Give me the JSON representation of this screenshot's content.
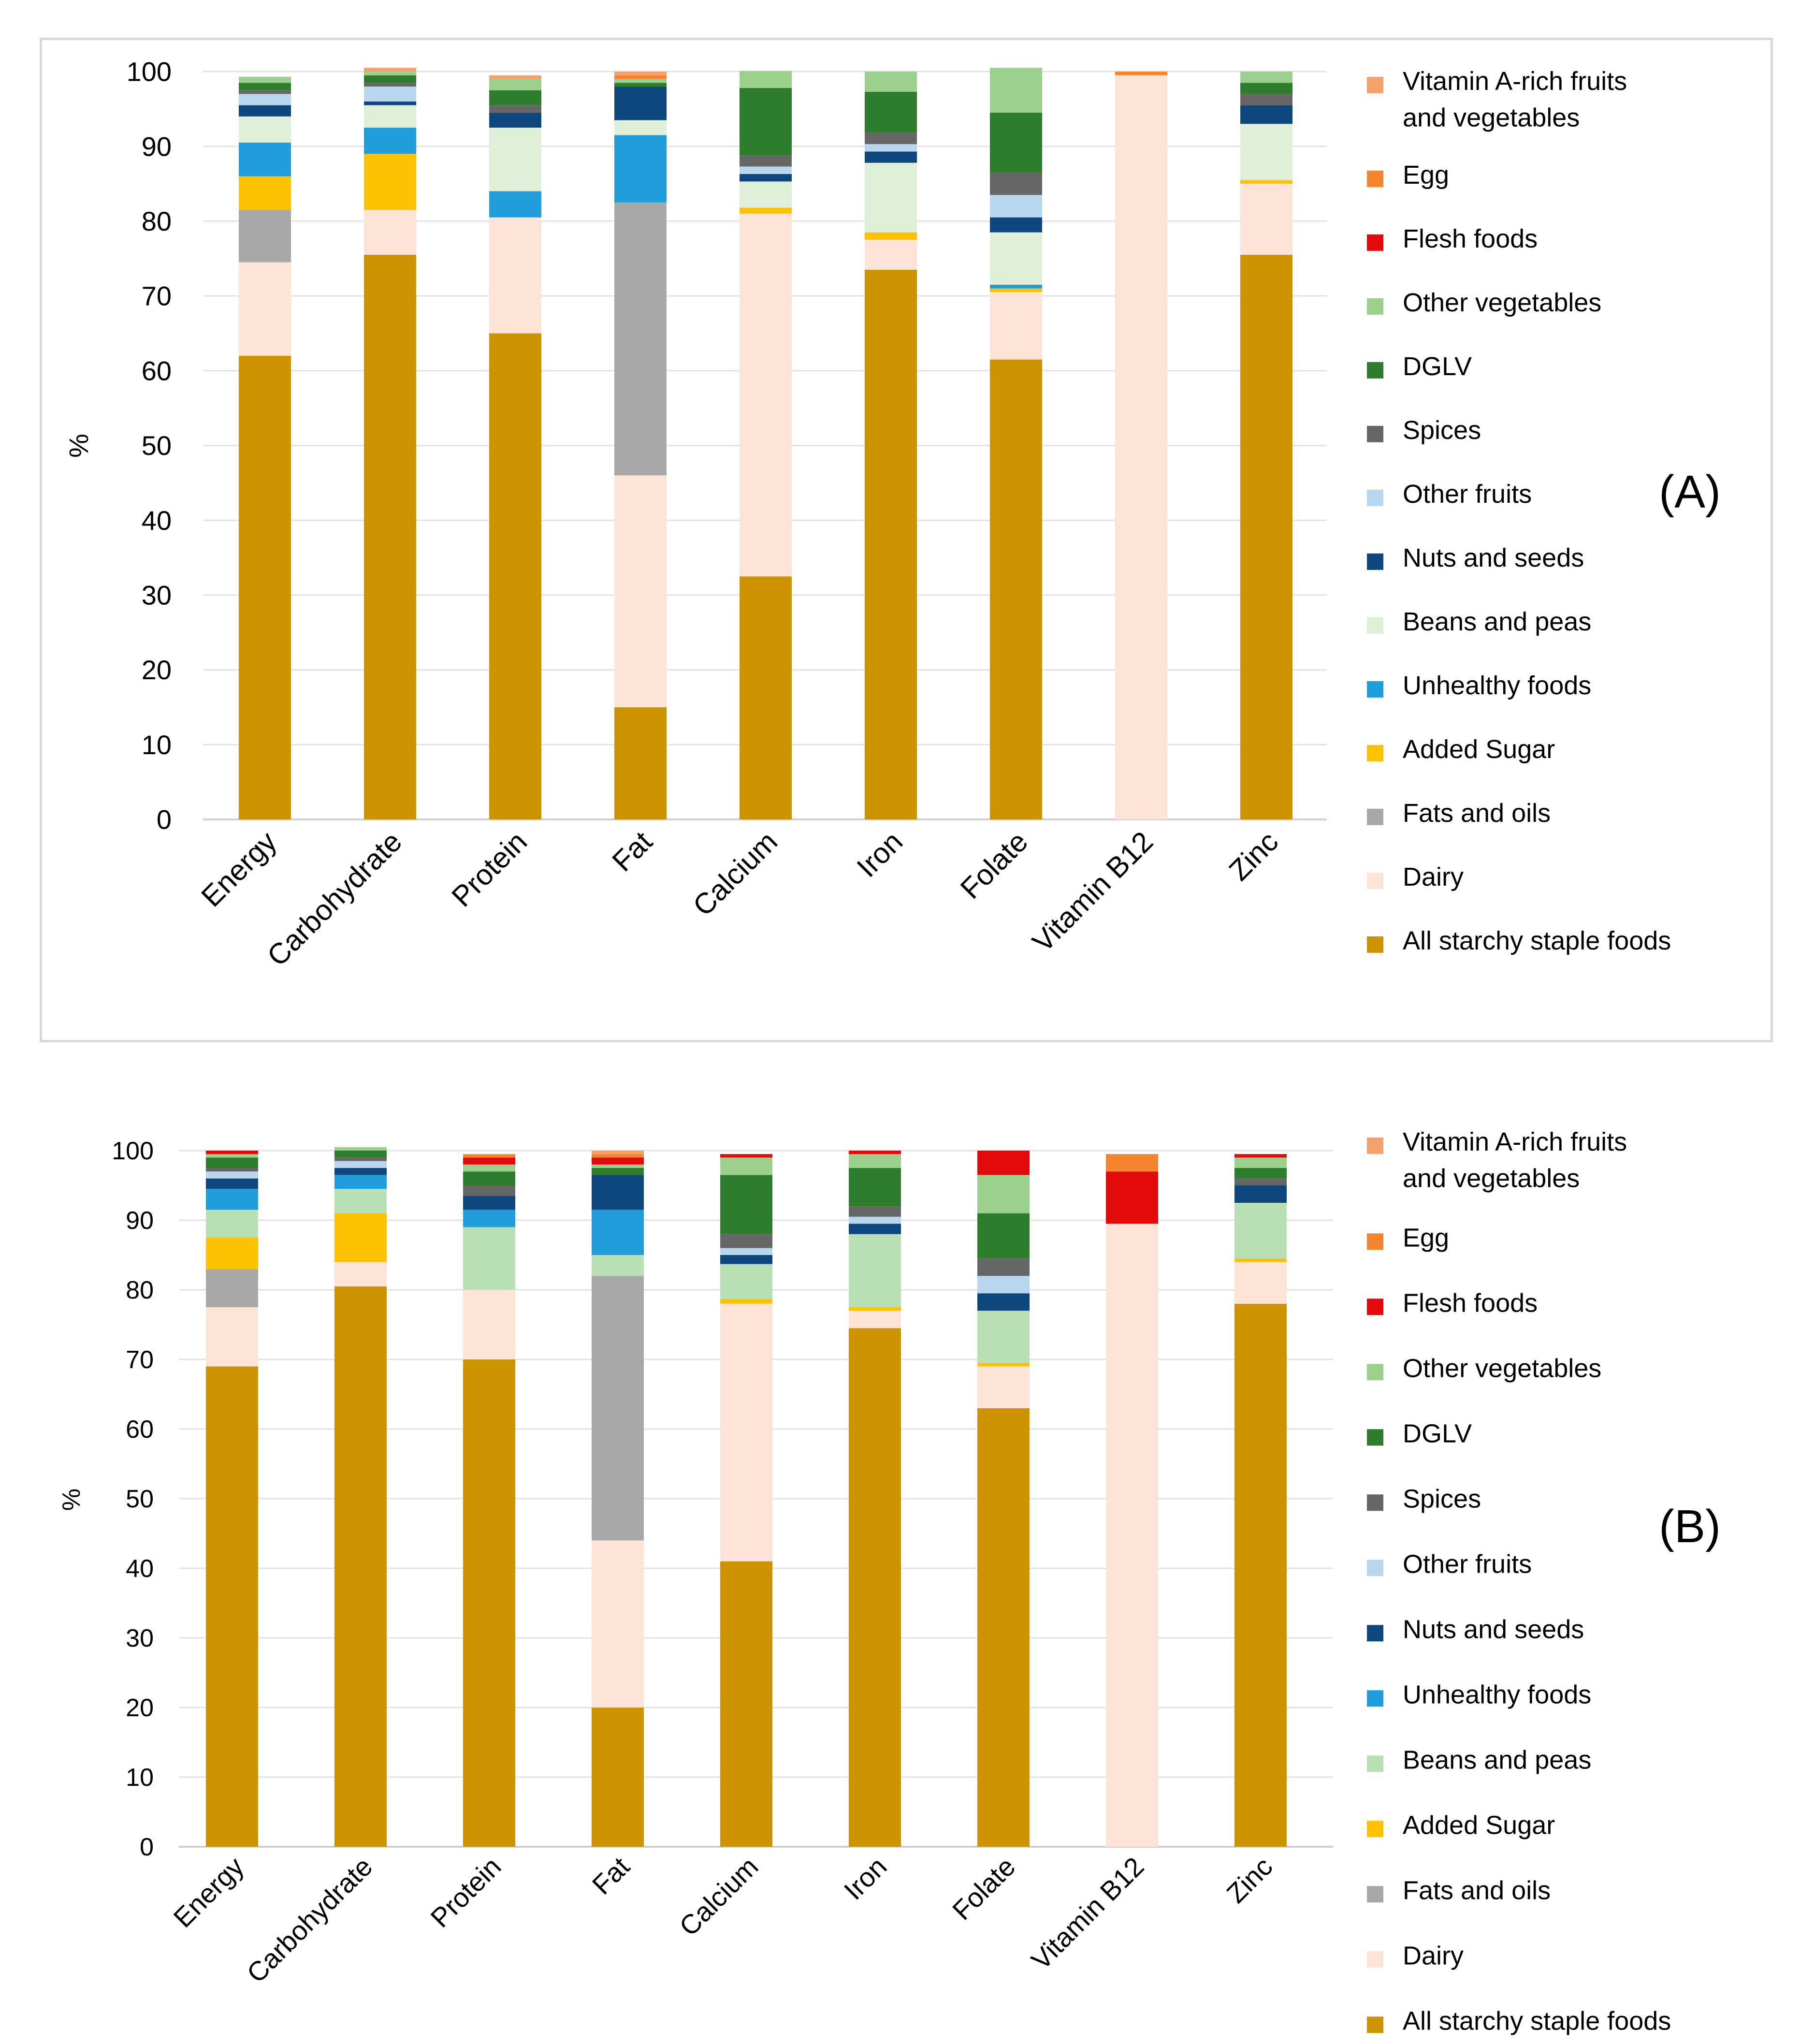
{
  "colors": {
    "Vitamin A-rich fruits and vegetables": "#F4A16B",
    "Egg": "#F5842F",
    "Flesh foods": "#E20A0A",
    "Other vegetables": "#9BD18C",
    "DGLV": "#2E7D2E",
    "Spices": "#666666",
    "Other fruits": "#B8D7EE",
    "Nuts and seeds": "#0E477E",
    "Beans and peas (A)": "#E0EFD8",
    "Beans and peas (B)": "#B9E0B5",
    "Unhealthy foods": "#219DDB",
    "Added Sugar": "#FDC202",
    "Fats and oils": "#A8A8A8",
    "Dairy": "#FDE4D7",
    "All starchy staple foods": "#CE9300"
  },
  "chart_data": [
    {
      "type": "bar",
      "stacked": true,
      "panel_label": "(A)",
      "ylabel": "%",
      "ylim": [
        0,
        100
      ],
      "yticks": [
        "0",
        "10",
        "20",
        "30",
        "40",
        "50",
        "60",
        "70",
        "80",
        "90",
        "100"
      ],
      "categories": [
        "Energy",
        "Carbohydrate",
        "Protein",
        "Fat",
        "Calcium",
        "Iron",
        "Folate",
        "Vitamin B12",
        "Zinc"
      ],
      "legend": [
        "Vitamin A-rich fruits and vegetables",
        "Egg",
        "Flesh foods",
        "Other vegetables",
        "DGLV",
        "Spices",
        "Other fruits",
        "Nuts and seeds",
        "Beans and peas",
        "Unhealthy foods",
        "Added Sugar",
        "Fats and oils",
        "Dairy",
        "All starchy staple foods"
      ],
      "series": [
        {
          "name": "All starchy staple foods",
          "values": [
            62,
            75.5,
            65,
            15,
            32.5,
            73.5,
            61.5,
            0,
            75.5
          ]
        },
        {
          "name": "Dairy",
          "values": [
            12.5,
            6,
            15.5,
            31,
            48.5,
            4,
            9,
            99.5,
            9.5
          ]
        },
        {
          "name": "Fats and oils",
          "values": [
            7,
            0,
            0,
            36.5,
            0,
            0,
            0,
            0,
            0
          ]
        },
        {
          "name": "Added Sugar",
          "values": [
            4.5,
            7.5,
            0,
            0,
            0.8,
            1,
            0.5,
            0,
            0.5
          ]
        },
        {
          "name": "Unhealthy foods",
          "values": [
            4.5,
            3.5,
            3.5,
            9,
            0,
            0,
            0.5,
            0,
            0
          ]
        },
        {
          "name": "Beans and peas",
          "values": [
            3.5,
            3,
            8.5,
            2,
            3.5,
            9.3,
            7,
            0,
            7.5
          ]
        },
        {
          "name": "Nuts and seeds",
          "values": [
            1.5,
            0.5,
            2,
            4.5,
            1,
            1.5,
            2,
            0,
            2.5
          ]
        },
        {
          "name": "Other fruits",
          "values": [
            1.5,
            2,
            0,
            0,
            1,
            1,
            3,
            0,
            0
          ]
        },
        {
          "name": "Spices",
          "values": [
            0.5,
            0.5,
            1,
            0,
            1.5,
            1.5,
            3,
            0,
            1.5
          ]
        },
        {
          "name": "DGLV",
          "values": [
            1,
            1,
            2,
            0.5,
            9,
            5.5,
            8,
            0,
            1.5
          ]
        },
        {
          "name": "Other vegetables",
          "values": [
            0.8,
            0.5,
            1.5,
            0.5,
            2.3,
            2.7,
            6,
            0,
            1.5
          ]
        },
        {
          "name": "Flesh foods",
          "values": [
            0,
            0,
            0,
            0,
            0,
            0,
            0,
            0,
            0
          ]
        },
        {
          "name": "Egg",
          "values": [
            0,
            0,
            0,
            0.5,
            0,
            0,
            0,
            0.5,
            0
          ]
        },
        {
          "name": "Vitamin A-rich fruits and vegetables",
          "values": [
            0,
            0.5,
            0.5,
            0.5,
            0,
            0,
            0,
            0,
            0
          ]
        }
      ]
    },
    {
      "type": "bar",
      "stacked": true,
      "panel_label": "(B)",
      "ylabel": "%",
      "ylim": [
        0,
        100
      ],
      "yticks": [
        "0",
        "10",
        "20",
        "30",
        "40",
        "50",
        "60",
        "70",
        "80",
        "90",
        "100"
      ],
      "categories": [
        "Energy",
        "Carbohydrate",
        "Protein",
        "Fat",
        "Calcium",
        "Iron",
        "Folate",
        "Vitamin B12",
        "Zinc"
      ],
      "legend": [
        "Vitamin A-rich fruits and vegetables",
        "Egg",
        "Flesh foods",
        "Other vegetables",
        "DGLV",
        "Spices",
        "Other fruits",
        "Nuts and seeds",
        "Unhealthy foods",
        "Beans and peas",
        "Added Sugar",
        "Fats and oils",
        "Dairy",
        "All starchy staple foods"
      ],
      "series": [
        {
          "name": "All starchy staple foods",
          "values": [
            69,
            80.5,
            70,
            20,
            41,
            74.5,
            63,
            0,
            78
          ]
        },
        {
          "name": "Dairy",
          "values": [
            8.5,
            3.5,
            10,
            24,
            37,
            2.5,
            6,
            89.5,
            6
          ]
        },
        {
          "name": "Fats and oils",
          "values": [
            5.5,
            0,
            0,
            38,
            0,
            0,
            0,
            0,
            0
          ]
        },
        {
          "name": "Added Sugar",
          "values": [
            4.5,
            7,
            0,
            0,
            0.7,
            0.5,
            0.5,
            0,
            0.5
          ]
        },
        {
          "name": "Beans and peas",
          "values": [
            4,
            3.5,
            9,
            3,
            5,
            10.5,
            7.5,
            0,
            8
          ]
        },
        {
          "name": "Unhealthy foods",
          "values": [
            3,
            2,
            2.5,
            6.5,
            0,
            0,
            0,
            0,
            0
          ]
        },
        {
          "name": "Nuts and seeds",
          "values": [
            1.5,
            1,
            2,
            5,
            1.3,
            1.5,
            2.5,
            0,
            2.5
          ]
        },
        {
          "name": "Other fruits",
          "values": [
            1,
            1,
            0,
            0,
            1,
            1,
            2.5,
            0,
            0
          ]
        },
        {
          "name": "Spices",
          "values": [
            0.5,
            0.5,
            1.5,
            0,
            2,
            1.5,
            2.5,
            0,
            1
          ]
        },
        {
          "name": "DGLV",
          "values": [
            1.5,
            1,
            2,
            1,
            8.5,
            5.5,
            6.5,
            0,
            1.5
          ]
        },
        {
          "name": "Other vegetables",
          "values": [
            0.5,
            0.5,
            1,
            0.5,
            2.5,
            2,
            5.5,
            0,
            1.5
          ]
        },
        {
          "name": "Flesh foods",
          "values": [
            0.5,
            0,
            1,
            1,
            0.5,
            0.5,
            3.5,
            7.5,
            0.5
          ]
        },
        {
          "name": "Egg",
          "values": [
            0,
            0,
            0.5,
            0.5,
            0,
            0,
            0,
            2.5,
            0
          ]
        },
        {
          "name": "Vitamin A-rich fruits and vegetables",
          "values": [
            0,
            0,
            0,
            0.5,
            0,
            0,
            0,
            0,
            0
          ]
        }
      ]
    }
  ]
}
